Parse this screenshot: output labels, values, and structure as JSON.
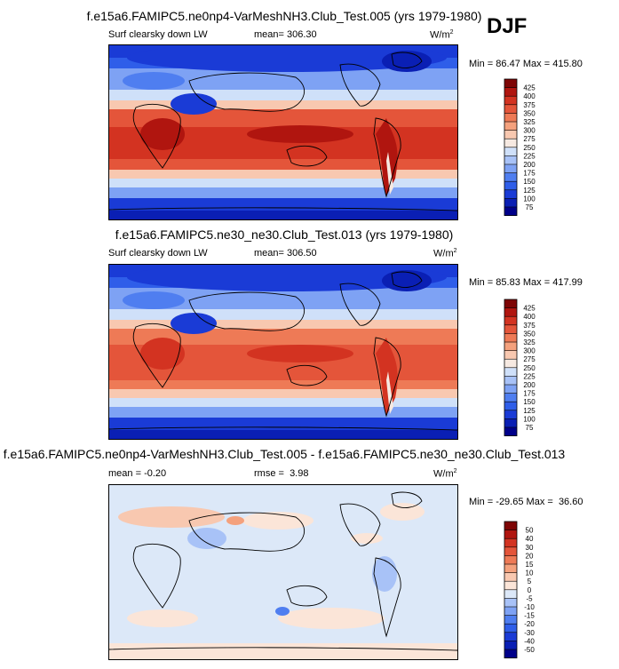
{
  "season": "DJF",
  "units": "W/m",
  "units_exp": "2",
  "chart_data": [
    {
      "type": "heatmap",
      "title": "f.e15a6.FAMIPC5.ne0np4-VarMeshNH3.Club_Test.005 (yrs 1979-1980)",
      "variable": "Surf clearsky down LW",
      "mean_label": "mean=",
      "mean": "306.30",
      "min_label": "Min =",
      "min": "86.47",
      "max_label": "Max =",
      "max": "415.80",
      "levels": [
        "75",
        "100",
        "125",
        "150",
        "175",
        "200",
        "225",
        "250",
        "275",
        "300",
        "325",
        "350",
        "375",
        "400",
        "425"
      ],
      "colors": [
        "#00008a",
        "#0a1fb4",
        "#1a3bd6",
        "#2f5ee9",
        "#4f7ef0",
        "#7ea2f4",
        "#a8c2f7",
        "#cfe0f9",
        "#f6e9e1",
        "#f8c8b0",
        "#f4a17d",
        "#ee7a56",
        "#e4553a",
        "#d33321",
        "#b0150f",
        "#7e0505"
      ]
    },
    {
      "type": "heatmap",
      "title": "f.e15a6.FAMIPC5.ne30_ne30.Club_Test.013 (yrs 1979-1980)",
      "variable": "Surf clearsky down LW",
      "mean_label": "mean=",
      "mean": "306.50",
      "min_label": "Min =",
      "min": "85.83",
      "max_label": "Max =",
      "max": "417.99",
      "levels": [
        "75",
        "100",
        "125",
        "150",
        "175",
        "200",
        "225",
        "250",
        "275",
        "300",
        "325",
        "350",
        "375",
        "400",
        "425"
      ],
      "colors": [
        "#00008a",
        "#0a1fb4",
        "#1a3bd6",
        "#2f5ee9",
        "#4f7ef0",
        "#7ea2f4",
        "#a8c2f7",
        "#cfe0f9",
        "#f6e9e1",
        "#f8c8b0",
        "#f4a17d",
        "#ee7a56",
        "#e4553a",
        "#d33321",
        "#b0150f",
        "#7e0505"
      ]
    },
    {
      "type": "heatmap",
      "title": "f.e15a6.FAMIPC5.ne0np4-VarMeshNH3.Club_Test.005 - f.e15a6.FAMIPC5.ne30_ne30.Club_Test.013",
      "mean_label": "mean =",
      "mean": "-0.20",
      "rmse_label": "rmse =",
      "rmse": "3.98",
      "min_label": "Min =",
      "min": "-29.65",
      "max_label": "Max =",
      "max": "36.60",
      "levels": [
        "-50",
        "-40",
        "-30",
        "-20",
        "-15",
        "-10",
        "-5",
        "0",
        "5",
        "10",
        "15",
        "20",
        "30",
        "40",
        "50"
      ],
      "colors": [
        "#00008a",
        "#0a1fb4",
        "#1a3bd6",
        "#2f5ee9",
        "#4f7ef0",
        "#7ea2f4",
        "#a8c2f7",
        "#dce8f8",
        "#fbe5d8",
        "#f8c8b0",
        "#f4a17d",
        "#ee7a56",
        "#e4553a",
        "#d33321",
        "#b0150f",
        "#7e0505"
      ]
    }
  ]
}
